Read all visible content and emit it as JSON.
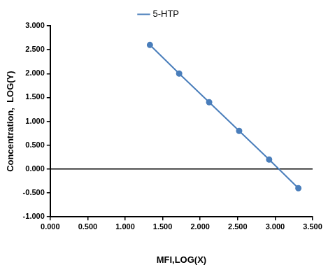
{
  "chart_data": {
    "type": "line",
    "x_label": "MFI,LOG(X)",
    "y_label": "Concentration,  LOG(Y)",
    "x": [
      1.33,
      1.72,
      2.12,
      2.52,
      2.92,
      3.31
    ],
    "series": [
      {
        "name": "5-HTP",
        "color": "#4a7ebb",
        "marker": "circle",
        "line_style": "solid",
        "values": [
          2.6,
          2.0,
          1.4,
          0.8,
          0.2,
          -0.4
        ]
      }
    ],
    "xlim": [
      0,
      3.5
    ],
    "xticks": [
      {
        "value": 0,
        "label": "0.000"
      },
      {
        "value": 0.5,
        "label": "0.500"
      },
      {
        "value": 1,
        "label": "1.000"
      },
      {
        "value": 1.5,
        "label": "1.500"
      },
      {
        "value": 2,
        "label": "2.000"
      },
      {
        "value": 2.5,
        "label": "2.500"
      },
      {
        "value": 3,
        "label": "3.000"
      },
      {
        "value": 3.5,
        "label": "3.500"
      }
    ],
    "ylim": [
      -1,
      3
    ],
    "yticks": [
      {
        "value": -1,
        "label": "-1.000"
      },
      {
        "value": -0.5,
        "label": "-0.500"
      },
      {
        "value": 0,
        "label": "0.000"
      },
      {
        "value": 0.5,
        "label": "0.500"
      },
      {
        "value": 1,
        "label": "1.000"
      },
      {
        "value": 1.5,
        "label": "1.500"
      },
      {
        "value": 2,
        "label": "2.000"
      },
      {
        "value": 2.5,
        "label": "2.500"
      },
      {
        "value": 3,
        "label": "3.000"
      }
    ],
    "grid": false,
    "legend": "top"
  }
}
